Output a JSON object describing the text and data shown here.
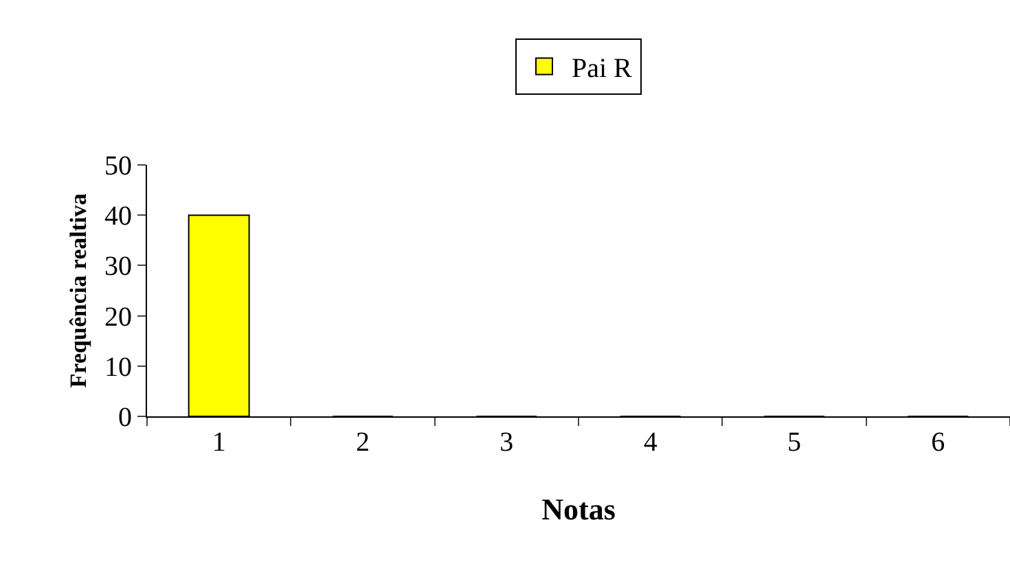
{
  "chart_data": {
    "type": "bar",
    "xlabel": "Notas",
    "ylabel": "Frequência realtiva",
    "categories": [
      "1",
      "2",
      "3",
      "4",
      "5",
      "6"
    ],
    "series": [
      {
        "name": "Pai R",
        "color": "#ffff00",
        "values": [
          40,
          0,
          0,
          0,
          0,
          0
        ]
      }
    ],
    "ylim": [
      0,
      50
    ],
    "yticks": [
      0,
      10,
      20,
      30,
      40,
      50
    ],
    "grid": false,
    "legend": "top"
  }
}
